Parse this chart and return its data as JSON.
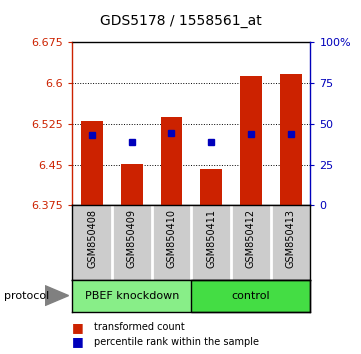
{
  "title": "GDS5178 / 1558561_at",
  "samples": [
    "GSM850408",
    "GSM850409",
    "GSM850410",
    "GSM850411",
    "GSM850412",
    "GSM850413"
  ],
  "bar_tops": [
    6.53,
    6.452,
    6.538,
    6.441,
    6.613,
    6.617
  ],
  "bar_base": 6.375,
  "percentile_values": [
    6.505,
    6.492,
    6.508,
    6.492,
    6.507,
    6.507
  ],
  "ylim": [
    6.375,
    6.675
  ],
  "y2lim": [
    0,
    100
  ],
  "yticks": [
    6.375,
    6.45,
    6.525,
    6.6,
    6.675
  ],
  "ytick_labels": [
    "6.375",
    "6.45",
    "6.525",
    "6.6",
    "6.675"
  ],
  "y2ticks": [
    0,
    25,
    50,
    75,
    100
  ],
  "y2tick_labels": [
    "0",
    "25",
    "50",
    "75",
    "100%"
  ],
  "group1_label": "PBEF knockdown",
  "group2_label": "control",
  "group1_color": "#88ee88",
  "group2_color": "#44dd44",
  "bar_color": "#cc2200",
  "blue_color": "#0000bb",
  "protocol_label": "protocol",
  "legend_items": [
    "transformed count",
    "percentile rank within the sample"
  ],
  "bg_color": "#ffffff",
  "tick_section_bg": "#cccccc",
  "bar_width": 0.55,
  "title_fontsize": 10,
  "axis_fontsize": 8,
  "sample_fontsize": 7
}
